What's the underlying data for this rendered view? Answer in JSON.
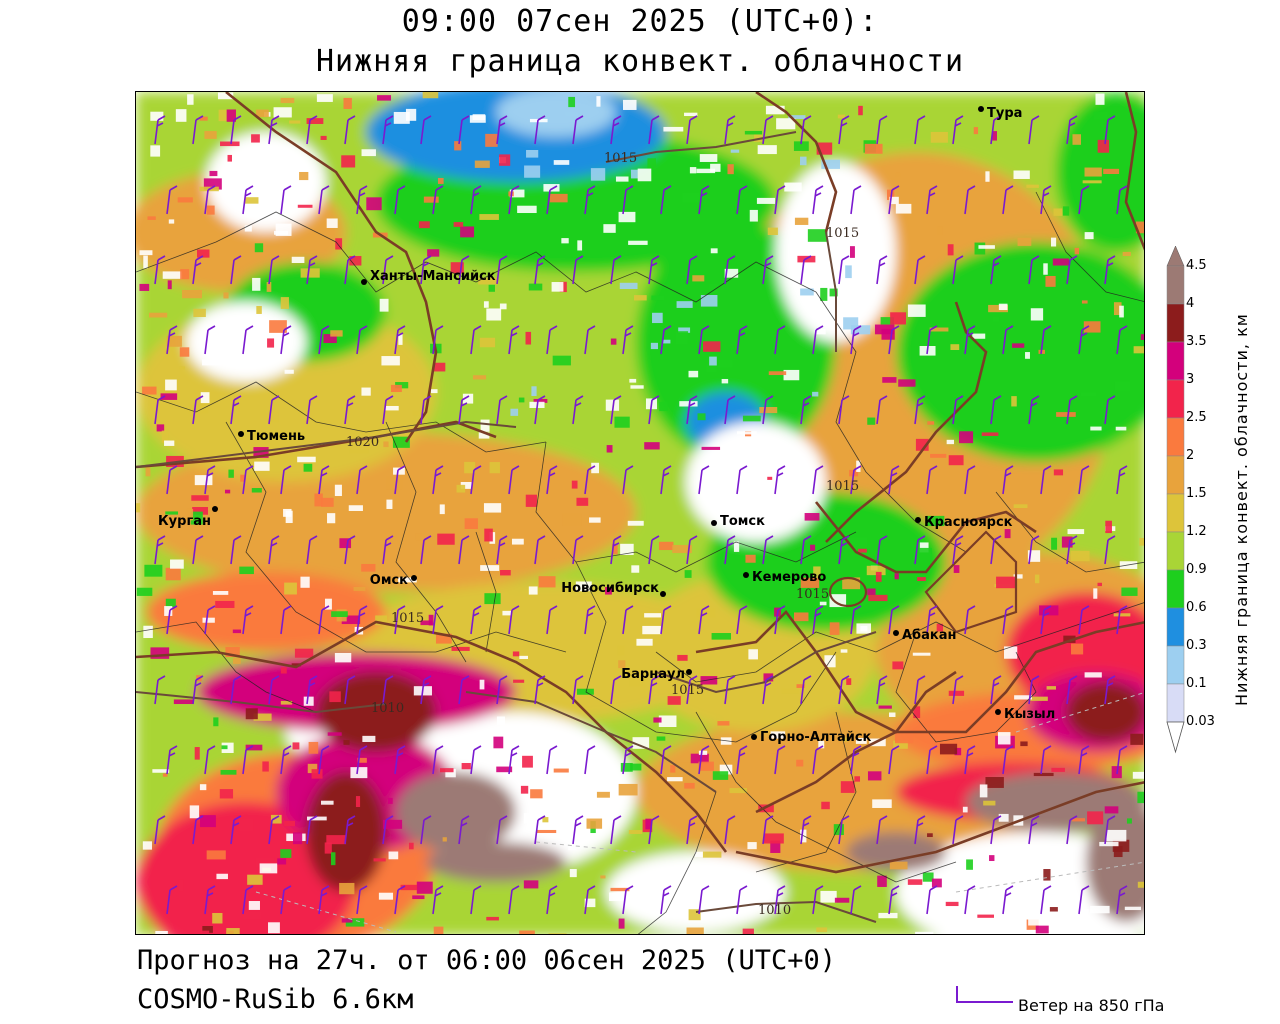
{
  "header": {
    "title_line1": "09:00 07сен 2025 (UTC+0):",
    "title_line2": "Нижняя граница конвект. облачности"
  },
  "footer": {
    "forecast": "Прогноз на 27ч. от 06:00 06сен 2025 (UTC+0)",
    "model": "COSMO-RuSib 6.6км",
    "wind_legend": "Ветер на 850 гПа"
  },
  "colorbar": {
    "title": "Нижняя граница конвект. облачности, км",
    "levels": [
      "4.5",
      "4",
      "3.5",
      "3",
      "2.5",
      "2",
      "1.5",
      "1.2",
      "0.9",
      "0.6",
      "0.3",
      "0.1",
      "0.03"
    ],
    "colors": [
      "#9c7a74",
      "#8c1c1c",
      "#d3007c",
      "#f2244b",
      "#fa7a3e",
      "#e8a33c",
      "#ddc43a",
      "#a9d536",
      "#1ecf1e",
      "#1f8fe0",
      "#9dcff0",
      "#d8dcf6",
      "#ffffff"
    ]
  },
  "map": {
    "cities": [
      {
        "name": "Тура"
      },
      {
        "name": "Ханты-Мансийск"
      },
      {
        "name": "Тюмень"
      },
      {
        "name": "Курган"
      },
      {
        "name": "Омск"
      },
      {
        "name": "Новосибирск"
      },
      {
        "name": "Томск"
      },
      {
        "name": "Кемерово"
      },
      {
        "name": "Красноярск"
      },
      {
        "name": "Абакан"
      },
      {
        "name": "Барнаул"
      },
      {
        "name": "Горно-Алтайск"
      },
      {
        "name": "Кызыл"
      }
    ],
    "isobars": [
      "1015",
      "1015",
      "1020",
      "1015",
      "1015",
      "1015",
      "1015",
      "1010",
      "1010"
    ],
    "field_colors": {
      "white": "#ffffff",
      "light_blue": "#9dcff0",
      "blue": "#1f8fe0",
      "green": "#1ecf1e",
      "yellow_green": "#a9d536",
      "yellow": "#ddc43a",
      "orange": "#e8a33c",
      "dark_orange": "#fa7a3e",
      "red": "#f2244b",
      "magenta": "#d3007c",
      "dark_red": "#8c1c1c",
      "brown": "#9c7a74"
    },
    "boundary_color": "#7a3d26",
    "wind_barb_color": "#7a1ad0",
    "isobar_color": "#6a4a3a"
  }
}
